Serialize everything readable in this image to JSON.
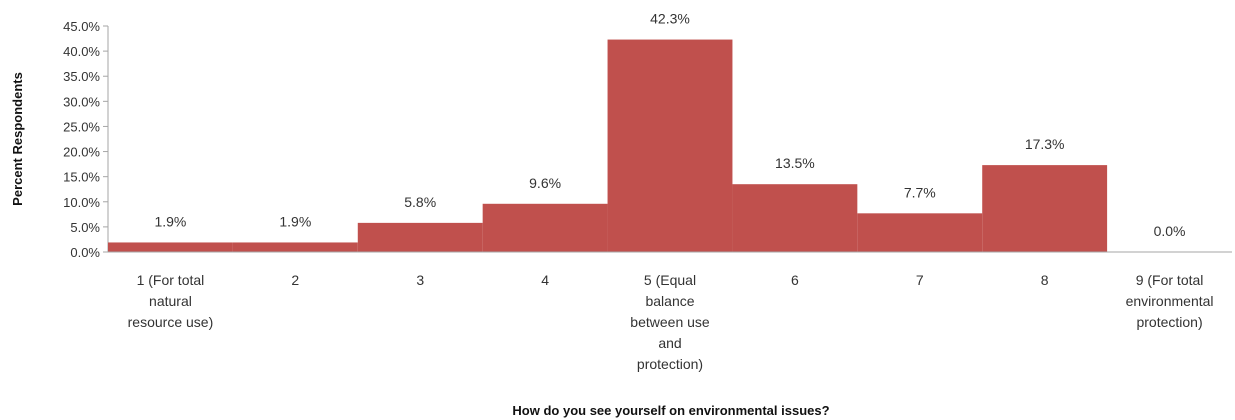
{
  "chart_data": {
    "type": "bar",
    "title": "",
    "xlabel": "How do you see yourself on environmental issues?",
    "ylabel": "Percent Respondents",
    "ylim": [
      0,
      45
    ],
    "ytick_step": 5,
    "ytick_labels": [
      "0.0%",
      "5.0%",
      "10.0%",
      "15.0%",
      "20.0%",
      "25.0%",
      "30.0%",
      "35.0%",
      "40.0%",
      "45.0%"
    ],
    "categories": [
      [
        "1 (For total",
        "natural",
        "resource use)"
      ],
      [
        "2"
      ],
      [
        "3"
      ],
      [
        "4"
      ],
      [
        "5 (Equal",
        "balance",
        "between use",
        "and",
        "protection)"
      ],
      [
        "6"
      ],
      [
        "7"
      ],
      [
        "8"
      ],
      [
        "9 (For total",
        "environmental",
        "protection)"
      ]
    ],
    "values": [
      1.9,
      1.9,
      5.8,
      9.6,
      42.3,
      13.5,
      7.7,
      17.3,
      0.0
    ],
    "data_labels": [
      "1.9%",
      "1.9%",
      "5.8%",
      "9.6%",
      "42.3%",
      "13.5%",
      "7.7%",
      "17.3%",
      "0.0%"
    ],
    "grid": false,
    "legend": "none",
    "bar_color": "#c0504d"
  }
}
